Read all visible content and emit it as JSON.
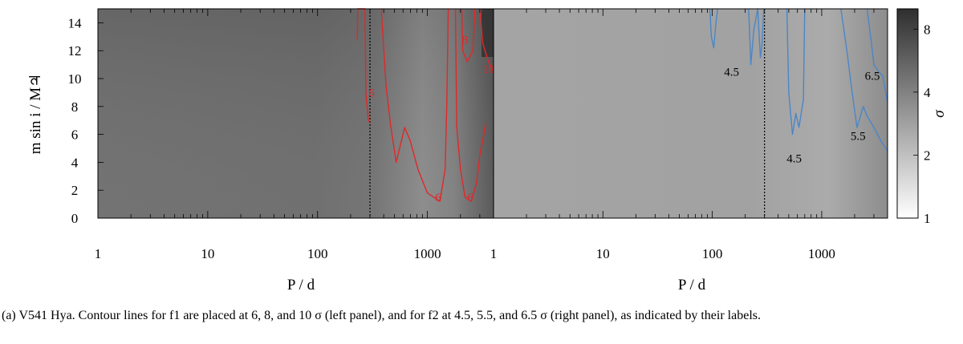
{
  "caption": "(a) V541 Hya. Contour lines for f1 are placed at 6, 8, and 10 σ (left panel), and for f2 at 4.5, 5.5, and 6.5 σ (right panel), as indicated by their labels.",
  "chart_data": [
    {
      "type": "heatmap",
      "panel": "left",
      "xlabel": "P / d",
      "ylabel": "m sin i / M♃",
      "xscale": "log",
      "xlim": [
        1,
        4000
      ],
      "ylim": [
        0,
        15
      ],
      "x_ticks": [
        "1",
        "10",
        "100",
        "1000"
      ],
      "y_ticks": [
        "0",
        "2",
        "4",
        "6",
        "8",
        "10",
        "12",
        "14"
      ],
      "vertical_marker_x": 300,
      "contour_color": "#e0282a",
      "contours": [
        {
          "level": "6",
          "points": [
            [
              230,
              12.8
            ],
            [
              232,
              15
            ],
            [
              270,
              15
            ],
            [
              275,
              9.0
            ],
            [
              290,
              7.0
            ],
            [
              300,
              6.8
            ]
          ]
        },
        {
          "level": "6",
          "points": [
            [
              380,
              15
            ],
            [
              420,
              9.5
            ],
            [
              460,
              6.8
            ],
            [
              520,
              4.0
            ],
            [
              620,
              6.5
            ],
            [
              700,
              5.5
            ],
            [
              820,
              3.5
            ],
            [
              1000,
              1.8
            ],
            [
              1300,
              1.2
            ],
            [
              1450,
              3.5
            ],
            [
              1500,
              8.0
            ],
            [
              1550,
              15
            ]
          ]
        },
        {
          "level": "6",
          "points": [
            [
              1800,
              15
            ],
            [
              1850,
              6.5
            ],
            [
              2000,
              3.5
            ],
            [
              2200,
              1.5
            ],
            [
              2500,
              1.2
            ],
            [
              2800,
              2.5
            ],
            [
              3000,
              4.5
            ],
            [
              3300,
              6.2
            ],
            [
              3400,
              6.8
            ]
          ]
        },
        {
          "level": "8",
          "points": [
            [
              2050,
              15
            ],
            [
              2100,
              12.0
            ],
            [
              2300,
              11.2
            ],
            [
              2600,
              12.0
            ],
            [
              2700,
              15
            ]
          ]
        },
        {
          "level": "10",
          "points": [
            [
              3000,
              15
            ],
            [
              3200,
              12.5
            ],
            [
              3600,
              11.2
            ],
            [
              4000,
              10.5
            ]
          ]
        }
      ],
      "contour_labels": [
        {
          "text": "6",
          "x": 310,
          "y": 8.7
        },
        {
          "text": "6",
          "x": 1250,
          "y": 1.2
        },
        {
          "text": "6",
          "x": 2450,
          "y": 1.2
        },
        {
          "text": "8",
          "x": 2200,
          "y": 12.5
        },
        {
          "text": "10",
          "x": 3600,
          "y": 10.4
        }
      ]
    },
    {
      "type": "heatmap",
      "panel": "right",
      "xlabel": "P / d",
      "ylabel": "",
      "xscale": "log",
      "xlim": [
        1,
        4000
      ],
      "ylim": [
        0,
        15
      ],
      "x_ticks": [
        "1",
        "10",
        "100",
        "1000"
      ],
      "vertical_marker_x": 300,
      "contour_color": "#4a86c8",
      "contours": [
        {
          "level": "4.5",
          "points": [
            [
              95,
              15
            ],
            [
              98,
              13.0
            ],
            [
              103,
              12.2
            ],
            [
              108,
              14.0
            ],
            [
              112,
              15
            ]
          ]
        },
        {
          "level": "4.5",
          "points": [
            [
              215,
              15
            ],
            [
              225,
              11.0
            ],
            [
              240,
              13.5
            ],
            [
              260,
              15
            ],
            [
              275,
              11.5
            ],
            [
              285,
              12.5
            ],
            [
              295,
              15
            ]
          ]
        },
        {
          "level": "4.5",
          "points": [
            [
              480,
              15
            ],
            [
              500,
              9.0
            ],
            [
              540,
              6.0
            ],
            [
              580,
              7.5
            ],
            [
              620,
              6.5
            ],
            [
              680,
              8.5
            ],
            [
              700,
              15
            ]
          ]
        },
        {
          "level": "5.5",
          "points": [
            [
              1500,
              15
            ],
            [
              1700,
              12.0
            ],
            [
              1900,
              9.0
            ],
            [
              2100,
              6.5
            ],
            [
              2400,
              8.0
            ],
            [
              2600,
              7.3
            ],
            [
              3000,
              6.5
            ],
            [
              3500,
              5.5
            ],
            [
              4000,
              4.8
            ]
          ]
        },
        {
          "level": "6.5",
          "points": [
            [
              2600,
              15
            ],
            [
              2800,
              13.0
            ],
            [
              3000,
              11.0
            ],
            [
              3300,
              10.5
            ],
            [
              3600,
              10.2
            ],
            [
              4000,
              8.3
            ]
          ]
        }
      ],
      "contour_labels": [
        {
          "text": "4.5",
          "x": 150,
          "y": 10.2
        },
        {
          "text": "4.5",
          "x": 560,
          "y": 4.0
        },
        {
          "text": "5.5",
          "x": 2150,
          "y": 5.6
        },
        {
          "text": "6.5",
          "x": 2900,
          "y": 9.9
        }
      ]
    },
    {
      "type": "colorbar",
      "label": "σ",
      "ticks": [
        "1",
        "2",
        "4",
        "8"
      ],
      "range": [
        1,
        10
      ]
    }
  ]
}
